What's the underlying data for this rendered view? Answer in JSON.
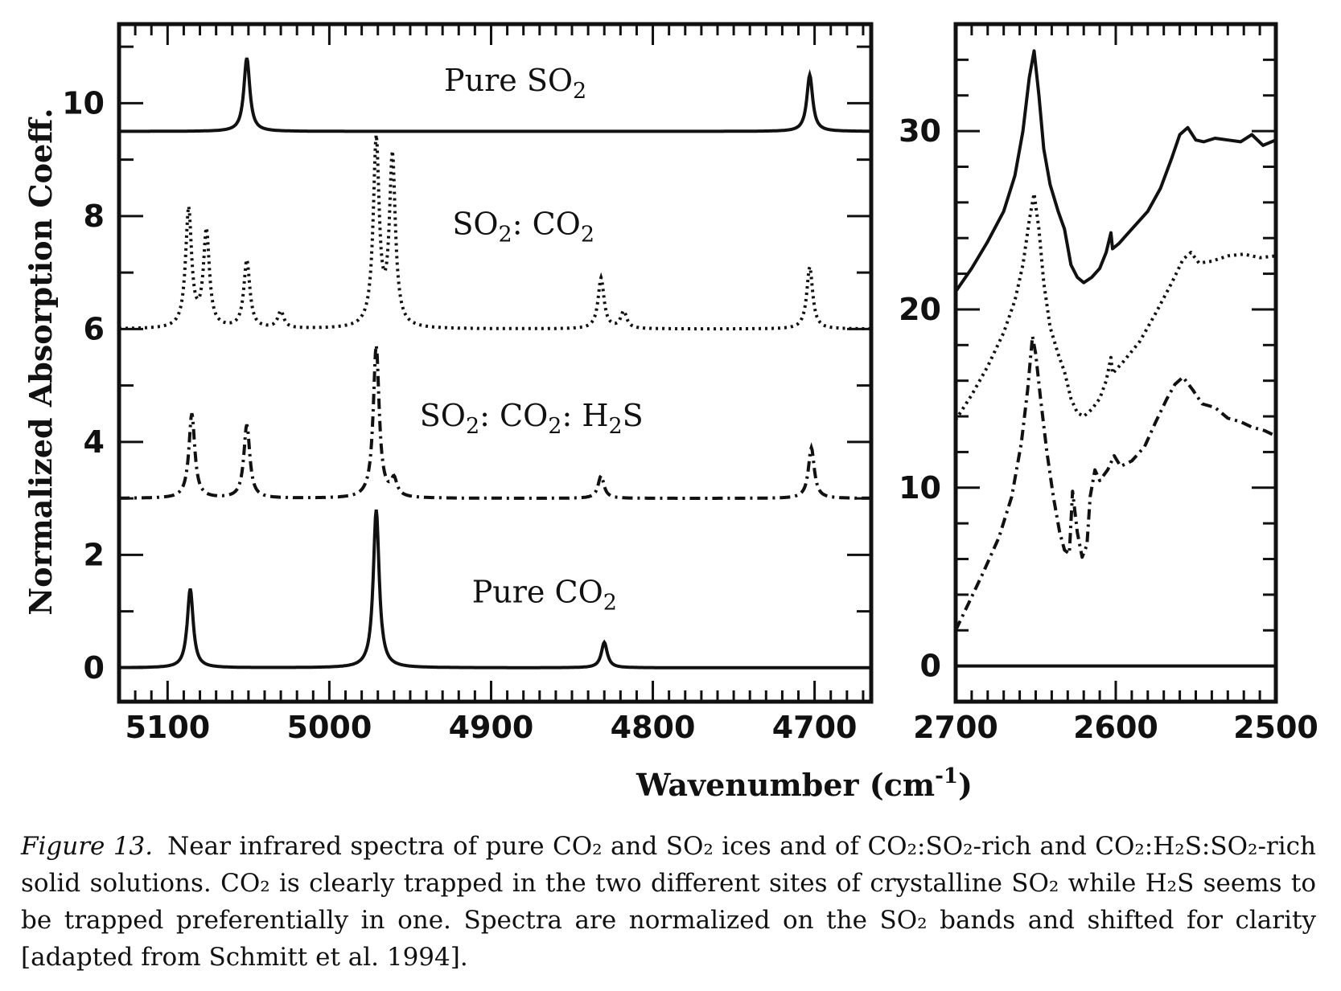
{
  "figure": {
    "caption_label": "Figure 13.",
    "caption_text": "Near infrared spectra of pure CO₂ and SO₂ ices and of CO₂:SO₂-rich and CO₂:H₂S:SO₂-rich solid solutions. CO₂ is clearly trapped in the two different sites of crystalline SO₂ while H₂S seems to be trapped preferentially in one. Spectra are normalized on the SO₂ bands and shifted for clarity [adapted from Schmitt et al. 1994]."
  },
  "chart_data": [
    {
      "type": "line",
      "ylabel": "Normalized Absorption Coeff.",
      "xlabel": "Wavenumber (cm-1)",
      "xlim": [
        5130,
        4665
      ],
      "ylim": [
        -0.6,
        11.4
      ],
      "x_reversed": true,
      "xticks": [
        5100,
        5000,
        4900,
        4800,
        4700
      ],
      "yticks": [
        0,
        2,
        4,
        6,
        8,
        10
      ],
      "colors": {
        "line": "#111111",
        "background": "#ffffff"
      },
      "series": [
        {
          "name": "Pure SO2",
          "style": "solid",
          "baseline": 9.5,
          "peaks": [
            {
              "x": 5051,
              "height": 1.3
            },
            {
              "x": 4703,
              "height": 1.0
            }
          ]
        },
        {
          "name": "SO2: CO2",
          "style": "dotted",
          "baseline": 6.0,
          "peaks": [
            {
              "x": 5087,
              "height": 2.1
            },
            {
              "x": 5076,
              "height": 1.7
            },
            {
              "x": 5051,
              "height": 1.2
            },
            {
              "x": 5030,
              "height": 0.3
            },
            {
              "x": 4971,
              "height": 3.3
            },
            {
              "x": 4961,
              "height": 3.0
            },
            {
              "x": 4832,
              "height": 0.9
            },
            {
              "x": 4818,
              "height": 0.3
            },
            {
              "x": 4703,
              "height": 1.1
            }
          ]
        },
        {
          "name": "SO2: CO2: H2S",
          "style": "dash-dot",
          "baseline": 3.0,
          "peaks": [
            {
              "x": 5085,
              "height": 1.5
            },
            {
              "x": 5051,
              "height": 1.3
            },
            {
              "x": 4971,
              "height": 2.7
            },
            {
              "x": 4960,
              "height": 0.3
            },
            {
              "x": 4832,
              "height": 0.4
            },
            {
              "x": 4702,
              "height": 0.9
            }
          ]
        },
        {
          "name": "Pure CO2",
          "style": "solid",
          "baseline": 0.0,
          "peaks": [
            {
              "x": 5086,
              "height": 1.4
            },
            {
              "x": 4971,
              "height": 2.8
            },
            {
              "x": 4830,
              "height": 0.45
            }
          ]
        }
      ],
      "trace_labels": [
        {
          "text": "Pure SO",
          "sub": "2",
          "x": 4885,
          "y": 10.22
        },
        {
          "text": "SO",
          "sub": "2",
          "text2": ": CO",
          "sub2": "2",
          "x": 4880,
          "y": 7.68
        },
        {
          "text": "SO",
          "sub": "2",
          "text2": ": CO",
          "sub2": "2",
          "text3": ": H",
          "sub3": "2",
          "text4": "S",
          "x": 4875,
          "y": 4.28
        },
        {
          "text": "Pure CO",
          "sub": "2",
          "x": 4867,
          "y": 1.16
        }
      ]
    },
    {
      "type": "line",
      "xlim": [
        2700,
        2500
      ],
      "ylim": [
        -2,
        36
      ],
      "x_reversed": true,
      "xticks": [
        2700,
        2600,
        2500
      ],
      "yticks": [
        0,
        10,
        20,
        30
      ],
      "series": [
        {
          "style": "solid",
          "points": [
            [
              2700,
              21
            ],
            [
              2690,
              22.3
            ],
            [
              2680,
              23.8
            ],
            [
              2670,
              25.5
            ],
            [
              2663,
              27.5
            ],
            [
              2658,
              30
            ],
            [
              2654,
              33
            ],
            [
              2651,
              34.5
            ],
            [
              2648,
              32
            ],
            [
              2645,
              29
            ],
            [
              2641,
              27
            ],
            [
              2636,
              25.5
            ],
            [
              2632,
              24.5
            ],
            [
              2628,
              22.5
            ],
            [
              2624,
              21.8
            ],
            [
              2620,
              21.5
            ],
            [
              2615,
              21.8
            ],
            [
              2610,
              22.3
            ],
            [
              2606,
              23.2
            ],
            [
              2603,
              24.3
            ],
            [
              2602,
              23.4
            ],
            [
              2598,
              23.7
            ],
            [
              2590,
              24.5
            ],
            [
              2580,
              25.5
            ],
            [
              2572,
              26.8
            ],
            [
              2565,
              28.5
            ],
            [
              2560,
              29.8
            ],
            [
              2555,
              30.2
            ],
            [
              2550,
              29.5
            ],
            [
              2545,
              29.4
            ],
            [
              2538,
              29.6
            ],
            [
              2530,
              29.5
            ],
            [
              2522,
              29.4
            ],
            [
              2515,
              29.8
            ],
            [
              2508,
              29.2
            ],
            [
              2500,
              29.5
            ]
          ]
        },
        {
          "style": "dotted",
          "points": [
            [
              2700,
              13.8
            ],
            [
              2690,
              15.2
            ],
            [
              2680,
              16.8
            ],
            [
              2670,
              18.7
            ],
            [
              2663,
              20.5
            ],
            [
              2658,
              22.5
            ],
            [
              2654,
              25
            ],
            [
              2651,
              26.5
            ],
            [
              2648,
              24.5
            ],
            [
              2645,
              21.5
            ],
            [
              2641,
              19
            ],
            [
              2636,
              17.5
            ],
            [
              2632,
              16.5
            ],
            [
              2628,
              15
            ],
            [
              2624,
              14.2
            ],
            [
              2620,
              14
            ],
            [
              2615,
              14.4
            ],
            [
              2610,
              15
            ],
            [
              2606,
              16
            ],
            [
              2603,
              17.3
            ],
            [
              2602,
              16.4
            ],
            [
              2595,
              17.1
            ],
            [
              2585,
              18.2
            ],
            [
              2575,
              19.8
            ],
            [
              2565,
              21.5
            ],
            [
              2558,
              22.8
            ],
            [
              2553,
              23.2
            ],
            [
              2548,
              22.6
            ],
            [
              2540,
              22.7
            ],
            [
              2530,
              23
            ],
            [
              2520,
              23.1
            ],
            [
              2510,
              22.9
            ],
            [
              2500,
              23
            ]
          ]
        },
        {
          "style": "dash-dot",
          "points": [
            [
              2700,
              2
            ],
            [
              2692,
              3.5
            ],
            [
              2683,
              5.2
            ],
            [
              2673,
              7.2
            ],
            [
              2665,
              9.5
            ],
            [
              2659,
              12.5
            ],
            [
              2655,
              15.5
            ],
            [
              2652,
              18.5
            ],
            [
              2650,
              17.5
            ],
            [
              2647,
              15
            ],
            [
              2643,
              12
            ],
            [
              2639,
              9.5
            ],
            [
              2635,
              7.5
            ],
            [
              2632,
              6.5
            ],
            [
              2629,
              6.3
            ],
            [
              2627,
              9.8
            ],
            [
              2624,
              7.5
            ],
            [
              2621,
              6.1
            ],
            [
              2618,
              6.8
            ],
            [
              2616,
              9.5
            ],
            [
              2613,
              11
            ],
            [
              2610,
              10.4
            ],
            [
              2605,
              11
            ],
            [
              2601,
              11.8
            ],
            [
              2597,
              11.2
            ],
            [
              2590,
              11.5
            ],
            [
              2582,
              12.3
            ],
            [
              2575,
              13.7
            ],
            [
              2568,
              15
            ],
            [
              2563,
              15.8
            ],
            [
              2558,
              16.2
            ],
            [
              2552,
              15.5
            ],
            [
              2546,
              14.7
            ],
            [
              2538,
              14.5
            ],
            [
              2530,
              13.9
            ],
            [
              2522,
              13.7
            ],
            [
              2515,
              13.4
            ],
            [
              2507,
              13.2
            ],
            [
              2500,
              12.9
            ]
          ]
        },
        {
          "style": "solid",
          "points": [
            [
              2700,
              0
            ],
            [
              2500,
              0
            ]
          ]
        }
      ]
    }
  ]
}
